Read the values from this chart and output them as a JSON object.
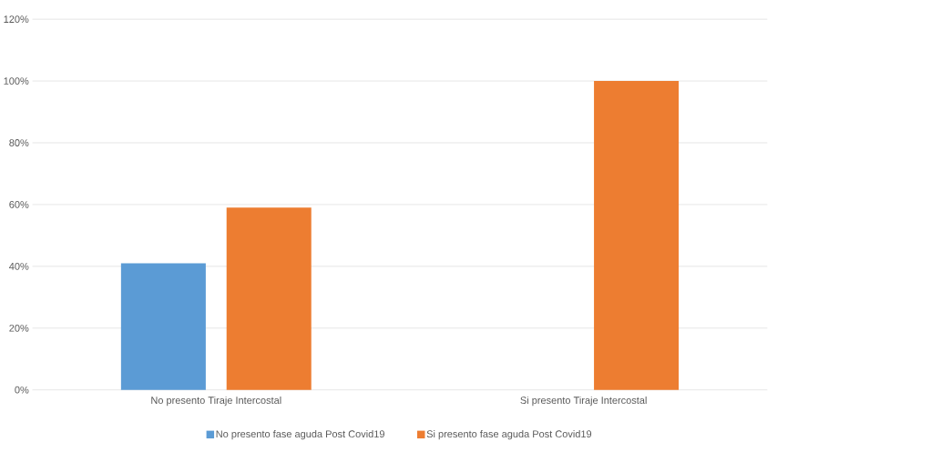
{
  "chart_data": {
    "type": "bar",
    "categories": [
      "No presento Tiraje Intercostal",
      "Si presento Tiraje Intercostal"
    ],
    "series": [
      {
        "name": "No presento fase aguda Post Covid19",
        "color": "#5b9bd5",
        "values": [
          41,
          0
        ]
      },
      {
        "name": "Si presento fase aguda Post Covid19",
        "color": "#ed7d31",
        "values": [
          59,
          100
        ]
      }
    ],
    "ylim": [
      0,
      120
    ],
    "yticks": [
      {
        "value": 0,
        "label": "0%"
      },
      {
        "value": 20,
        "label": "20%"
      },
      {
        "value": 40,
        "label": "40%"
      },
      {
        "value": 60,
        "label": "60%"
      },
      {
        "value": 80,
        "label": "80%"
      },
      {
        "value": 100,
        "label": "100%"
      },
      {
        "value": 120,
        "label": "120%"
      }
    ],
    "grid": "y",
    "legend": "bottom"
  }
}
